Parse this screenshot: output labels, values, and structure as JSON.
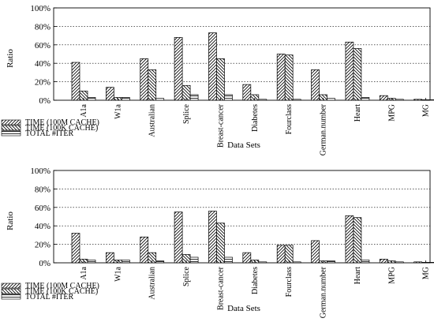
{
  "chart_data": [
    {
      "type": "bar",
      "categories": [
        "A1a",
        "W1a",
        "Australian",
        "Splice",
        "Breast-cancer",
        "Diabetes",
        "Fourclass",
        "German.number",
        "Heart",
        "MPG",
        "MG"
      ],
      "series": [
        {
          "name": "TIME (100M CACHE)",
          "values": [
            41,
            14,
            45,
            68,
            73,
            17,
            50,
            33,
            63,
            5,
            1
          ]
        },
        {
          "name": "TIME (100K CACHE)",
          "values": [
            10,
            3,
            33,
            16,
            45,
            6,
            49,
            6,
            56,
            2,
            0.5
          ]
        },
        {
          "name": "TOTAL #ITER",
          "values": [
            3,
            3,
            2,
            6,
            6,
            1,
            1,
            2,
            3,
            1,
            0.3
          ]
        }
      ],
      "xlabel": "Data Sets",
      "ylabel": "Ratio",
      "ylim": [
        0,
        100
      ],
      "yticks": [
        "0%",
        "20%",
        "40%",
        "60%",
        "80%",
        "100%"
      ],
      "grid": true,
      "legend_position": "bottom-left"
    },
    {
      "type": "bar",
      "categories": [
        "A1a",
        "W1a",
        "Australian",
        "Splice",
        "Breast-cancer",
        "Diabetes",
        "Fourclass",
        "German.number",
        "Heart",
        "MPG",
        "MG"
      ],
      "series": [
        {
          "name": "TIME (100M CACHE)",
          "values": [
            32,
            11,
            28,
            55,
            56,
            11,
            19,
            24,
            51,
            4,
            1
          ]
        },
        {
          "name": "TIME (100K CACHE)",
          "values": [
            4,
            3,
            11,
            9,
            43,
            3,
            19,
            2,
            49,
            2,
            0.5
          ]
        },
        {
          "name": "TOTAL #ITER",
          "values": [
            3,
            3,
            2,
            6,
            6,
            1,
            1,
            2,
            3,
            1,
            0.3
          ]
        }
      ],
      "xlabel": "Data Sets",
      "ylabel": "Ratio",
      "ylim": [
        0,
        100
      ],
      "yticks": [
        "0%",
        "20%",
        "40%",
        "60%",
        "80%",
        "100%"
      ],
      "grid": true,
      "legend_position": "bottom-left"
    }
  ]
}
